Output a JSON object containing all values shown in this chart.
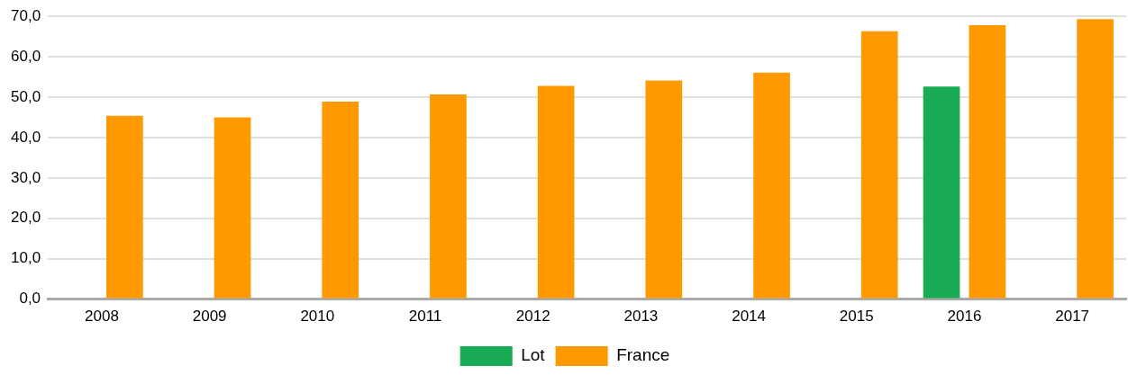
{
  "chart_data": {
    "type": "bar",
    "categories": [
      "2008",
      "2009",
      "2010",
      "2011",
      "2012",
      "2013",
      "2014",
      "2015",
      "2016",
      "2017"
    ],
    "series": [
      {
        "name": "Lot",
        "color": "#1aab55",
        "values": [
          null,
          null,
          null,
          null,
          null,
          null,
          null,
          null,
          52.6,
          null
        ]
      },
      {
        "name": "France",
        "color": "#ff9900",
        "values": [
          45.4,
          45.0,
          48.9,
          50.7,
          52.8,
          54.1,
          56.1,
          66.3,
          67.8,
          69.3
        ]
      }
    ],
    "ylim": [
      0,
      70
    ],
    "yticks": [
      {
        "value": 0,
        "label": "0,0"
      },
      {
        "value": 10,
        "label": "10,0"
      },
      {
        "value": 20,
        "label": "20,0"
      },
      {
        "value": 30,
        "label": "30,0"
      },
      {
        "value": 40,
        "label": "40,0"
      },
      {
        "value": 50,
        "label": "50,0"
      },
      {
        "value": 60,
        "label": "60,0"
      },
      {
        "value": 70,
        "label": "70,0"
      }
    ],
    "grid": "y",
    "legend": "bottom"
  }
}
